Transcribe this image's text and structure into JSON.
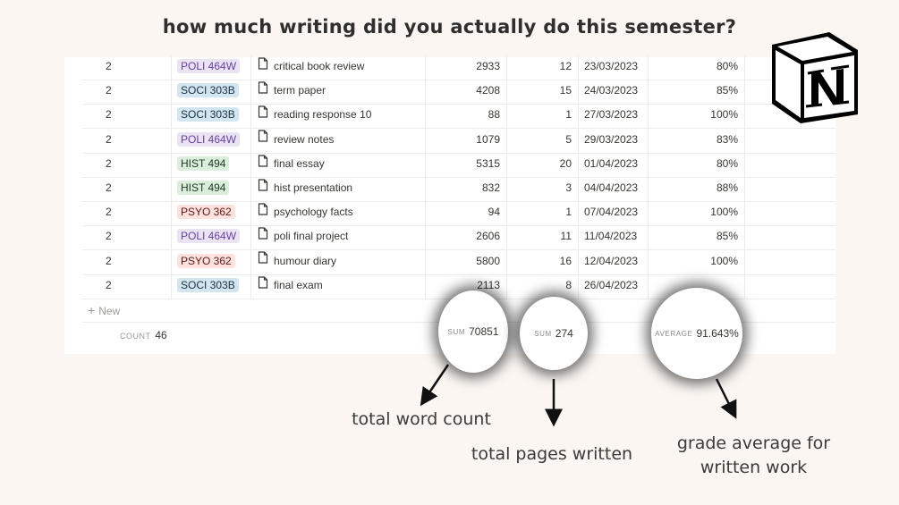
{
  "title": "how much writing did you actually do this semester?",
  "rows": [
    {
      "num": "2",
      "course": "POLI 464W",
      "course_color": "#eae4f2",
      "course_text": "#6940a5",
      "name": "critical book review",
      "words": "2933",
      "pages": "12",
      "date": "23/03/2023",
      "grade": "80%"
    },
    {
      "num": "2",
      "course": "SOCI 303B",
      "course_color": "#d3e5ef",
      "course_text": "#183347",
      "name": "term paper",
      "words": "4208",
      "pages": "15",
      "date": "24/03/2023",
      "grade": "85%"
    },
    {
      "num": "2",
      "course": "SOCI 303B",
      "course_color": "#d3e5ef",
      "course_text": "#183347",
      "name": "reading response 10",
      "words": "88",
      "pages": "1",
      "date": "27/03/2023",
      "grade": "100%"
    },
    {
      "num": "2",
      "course": "POLI 464W",
      "course_color": "#eae4f2",
      "course_text": "#6940a5",
      "name": "review notes",
      "words": "1079",
      "pages": "5",
      "date": "29/03/2023",
      "grade": "83%"
    },
    {
      "num": "2",
      "course": "HIST 494",
      "course_color": "#dbeddb",
      "course_text": "#1c3829",
      "name": "final essay",
      "words": "5315",
      "pages": "20",
      "date": "01/04/2023",
      "grade": "80%"
    },
    {
      "num": "2",
      "course": "HIST 494",
      "course_color": "#dbeddb",
      "course_text": "#1c3829",
      "name": "hist presentation",
      "words": "832",
      "pages": "3",
      "date": "04/04/2023",
      "grade": "88%"
    },
    {
      "num": "2",
      "course": "PSYO 362",
      "course_color": "#ffe2dd",
      "course_text": "#5d1715",
      "name": "psychology facts",
      "words": "94",
      "pages": "1",
      "date": "07/04/2023",
      "grade": "100%"
    },
    {
      "num": "2",
      "course": "POLI 464W",
      "course_color": "#eae4f2",
      "course_text": "#6940a5",
      "name": "poli final project",
      "words": "2606",
      "pages": "11",
      "date": "11/04/2023",
      "grade": "85%"
    },
    {
      "num": "2",
      "course": "PSYO 362",
      "course_color": "#ffe2dd",
      "course_text": "#5d1715",
      "name": "humour diary",
      "words": "5800",
      "pages": "16",
      "date": "12/04/2023",
      "grade": "100%"
    },
    {
      "num": "2",
      "course": "SOCI 303B",
      "course_color": "#d3e5ef",
      "course_text": "#183347",
      "name": "final exam",
      "words": "2113",
      "pages": "8",
      "date": "26/04/2023",
      "grade": ""
    }
  ],
  "new_label": "New",
  "footer": {
    "count_label": "COUNT",
    "count_value": "46",
    "sum_label": "SUM",
    "words_sum": "70851",
    "pages_sum": "274",
    "avg_label": "AVERAGE",
    "grade_avg": "91.643%"
  },
  "captions": {
    "words": "total word count",
    "pages": "total pages written",
    "grade": "grade average for written work"
  },
  "icons": {
    "doc": "page-icon",
    "plus": "plus-icon",
    "logo": "notion-logo"
  }
}
